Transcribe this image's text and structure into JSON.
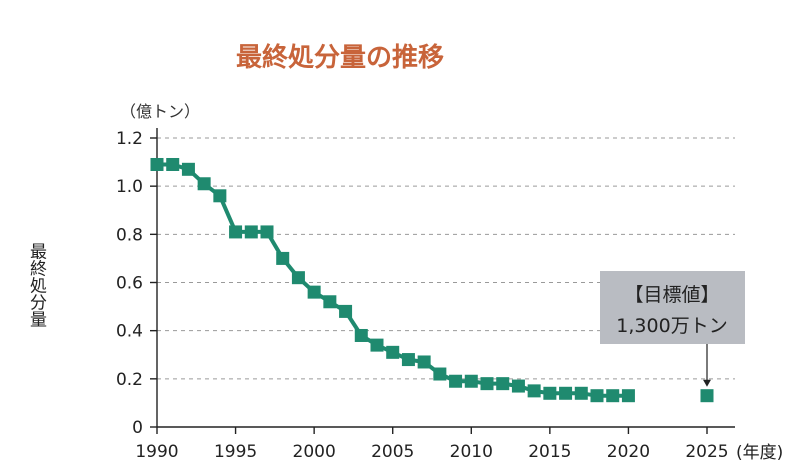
{
  "chart_data": {
    "type": "line",
    "title": "最終処分量の推移",
    "ylabel": "最終処分量",
    "unit_label": "（億トン）",
    "x_unit": "(年度)",
    "x_ticks": [
      "1990",
      "1995",
      "2000",
      "2005",
      "2010",
      "2015",
      "2020",
      "2025"
    ],
    "y_ticks": [
      "0",
      "0.2",
      "0.4",
      "0.6",
      "0.8",
      "1.0",
      "1.2"
    ],
    "ylim": [
      0,
      1.2
    ],
    "xlim": [
      1990,
      2025
    ],
    "grid": "horizontal dashed",
    "color": "#1f8a6f",
    "series": [
      {
        "x": [
          1990,
          1991,
          1992,
          1993,
          1994,
          1995,
          1996,
          1997,
          1998,
          1999,
          2000,
          2001,
          2002,
          2003,
          2004,
          2005,
          2006,
          2007,
          2008,
          2009,
          2010,
          2011,
          2012,
          2013,
          2014,
          2015,
          2016,
          2017,
          2018,
          2019,
          2020
        ],
        "values": [
          1.09,
          1.09,
          1.07,
          1.01,
          0.96,
          0.81,
          0.81,
          0.81,
          0.7,
          0.62,
          0.56,
          0.52,
          0.48,
          0.38,
          0.34,
          0.31,
          0.28,
          0.27,
          0.22,
          0.19,
          0.19,
          0.18,
          0.18,
          0.17,
          0.15,
          0.14,
          0.14,
          0.14,
          0.13,
          0.13,
          0.13
        ]
      }
    ],
    "target": {
      "x": 2025,
      "value": 0.13,
      "label_line1": "【目標値】",
      "label_line2": "1,300万トン"
    }
  }
}
